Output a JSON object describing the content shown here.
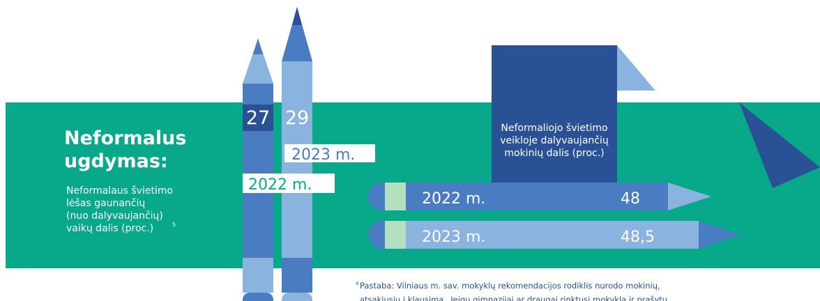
{
  "heading": {
    "lines": [
      "Neformalus",
      "ugdymas:"
    ]
  },
  "description": {
    "lines": [
      "Neformalaus švietimo",
      "lėšas gaunančių",
      "(nuo dalyvaujančių)",
      "vaikų dalis (proc.)"
    ],
    "note_ref": "5"
  },
  "vertical_pencils": [
    {
      "value": "27",
      "year": "2022 m."
    },
    {
      "value": "29",
      "year": "2023 m."
    }
  ],
  "panel": {
    "lines": [
      "Neformaliojo švietimo",
      "veikloje dalyvaujančių",
      "mokinių dalis (proc.)"
    ]
  },
  "horizontal_pencils": [
    {
      "year": "2022 m.",
      "value": "48"
    },
    {
      "year": "2023 m.",
      "value": "48,5"
    }
  ],
  "footnote": {
    "marker": "4",
    "lines": [
      "Pastaba: Vilniaus m. sav. mokyklų rekomendacijos rodiklis nurodo mokinių,",
      "atsakiusių į klausimą „Jeigu gimnazijai ar draugai rinktųsi mokyklą ir prašytų"
    ]
  }
}
